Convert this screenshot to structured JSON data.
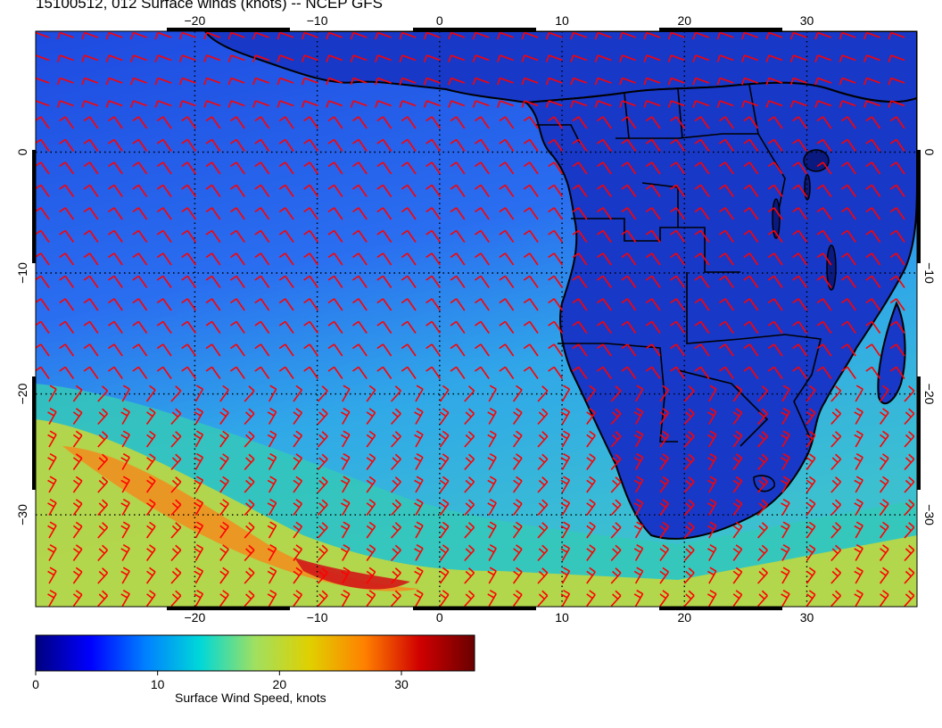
{
  "title": "15100512, 012 Surface winds (knots) -- NCEP GFS",
  "map": {
    "lon_ticks": [
      "−20",
      "−10",
      "0",
      "10",
      "20",
      "30"
    ],
    "lat_ticks": [
      "0",
      "−10",
      "−20",
      "−30"
    ],
    "lon_range": [
      -33,
      39
    ],
    "lat_range": [
      -37.6,
      10
    ],
    "gridlines": true,
    "gridline_style": "dotted",
    "region": "South Atlantic and southern Africa",
    "barb_color": "#ff0000",
    "coastline_color": "#000000"
  },
  "colorbar": {
    "label": "Surface Wind Speed, knots",
    "tick_labels": [
      "0",
      "10",
      "20",
      "30"
    ],
    "tick_values": [
      0,
      10,
      20,
      30
    ],
    "range": [
      0,
      36
    ],
    "colormap": "jet-like",
    "colors": [
      "#00007f",
      "#0000ff",
      "#0080ff",
      "#00d8d8",
      "#a0e060",
      "#e0d000",
      "#ff8000",
      "#d00000",
      "#6a0000"
    ]
  }
}
